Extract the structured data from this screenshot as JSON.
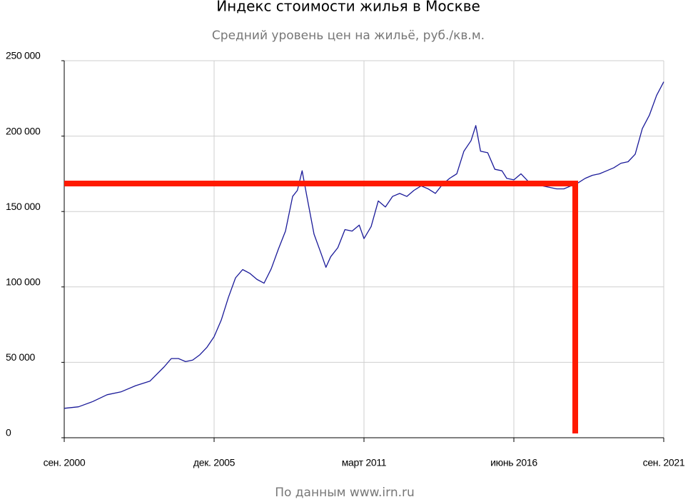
{
  "chart_data": {
    "type": "line",
    "title": "Индекс стоимости жилья в Москве",
    "subtitle": "Средний уровень цен на жильё, руб./кв.м.",
    "source": "По данным www.irn.ru",
    "x": [
      "2000-09",
      "2001-03",
      "2001-09",
      "2002-03",
      "2002-09",
      "2003-03",
      "2003-09",
      "2004-03",
      "2004-06",
      "2004-09",
      "2004-12",
      "2005-03",
      "2005-06",
      "2005-09",
      "2005-12",
      "2006-03",
      "2006-06",
      "2006-09",
      "2006-12",
      "2007-03",
      "2007-06",
      "2007-09",
      "2007-12",
      "2008-03",
      "2008-06",
      "2008-09",
      "2008-11",
      "2009-01",
      "2009-03",
      "2009-06",
      "2009-09",
      "2009-11",
      "2010-01",
      "2010-04",
      "2010-07",
      "2010-10",
      "2011-01",
      "2011-03",
      "2011-06",
      "2011-09",
      "2011-12",
      "2012-03",
      "2012-06",
      "2012-09",
      "2012-12",
      "2013-03",
      "2013-06",
      "2013-09",
      "2013-12",
      "2014-03",
      "2014-06",
      "2014-09",
      "2014-12",
      "2015-02",
      "2015-04",
      "2015-07",
      "2015-10",
      "2016-01",
      "2016-03",
      "2016-06",
      "2016-09",
      "2016-12",
      "2017-03",
      "2017-06",
      "2017-09",
      "2017-12",
      "2018-03",
      "2018-06",
      "2018-09",
      "2018-12",
      "2019-03",
      "2019-06",
      "2019-09",
      "2019-12",
      "2020-03",
      "2020-06",
      "2020-09",
      "2020-12",
      "2021-03",
      "2021-06",
      "2021-09"
    ],
    "series": [
      {
        "name": "Средний уровень цен",
        "color": "#1a1a99",
        "values": [
          19500,
          20500,
          24000,
          28500,
          30500,
          34500,
          37500,
          47000,
          52500,
          52500,
          50500,
          51500,
          55000,
          60000,
          67000,
          78000,
          93000,
          106000,
          111500,
          109000,
          105000,
          102500,
          112000,
          125000,
          137000,
          160000,
          164000,
          177000,
          160000,
          135000,
          122000,
          113000,
          120000,
          126000,
          138000,
          137000,
          141000,
          132000,
          140000,
          157000,
          153000,
          160000,
          162000,
          160000,
          164000,
          167000,
          165000,
          162000,
          168000,
          172000,
          175000,
          190000,
          197000,
          207000,
          190000,
          189000,
          178000,
          177000,
          172000,
          171000,
          175000,
          170000,
          168000,
          167000,
          166000,
          165000,
          165000,
          167000,
          169000,
          172000,
          174000,
          175000,
          177000,
          179000,
          182000,
          183000,
          188000,
          205000,
          214000,
          227000,
          236000
        ]
      }
    ],
    "xlim": [
      "2000-09",
      "2021-09"
    ],
    "xticks": [
      {
        "value": "2000-09",
        "label": "сен. 2000"
      },
      {
        "value": "2005-12",
        "label": "дек. 2005"
      },
      {
        "value": "2011-03",
        "label": "март 2011"
      },
      {
        "value": "2016-06",
        "label": "июнь 2016"
      },
      {
        "value": "2021-09",
        "label": "сен. 2021"
      }
    ],
    "ylim": [
      0,
      250000
    ],
    "yticks": [
      0,
      {
        "value": 50000,
        "label": "50 000"
      },
      {
        "value": 100000,
        "label": "100 000"
      },
      {
        "value": 150000,
        "label": "150 000"
      },
      {
        "value": 200000,
        "label": "200 000"
      },
      {
        "value": 250000,
        "label": "250 000"
      }
    ],
    "grid": true
  }
}
